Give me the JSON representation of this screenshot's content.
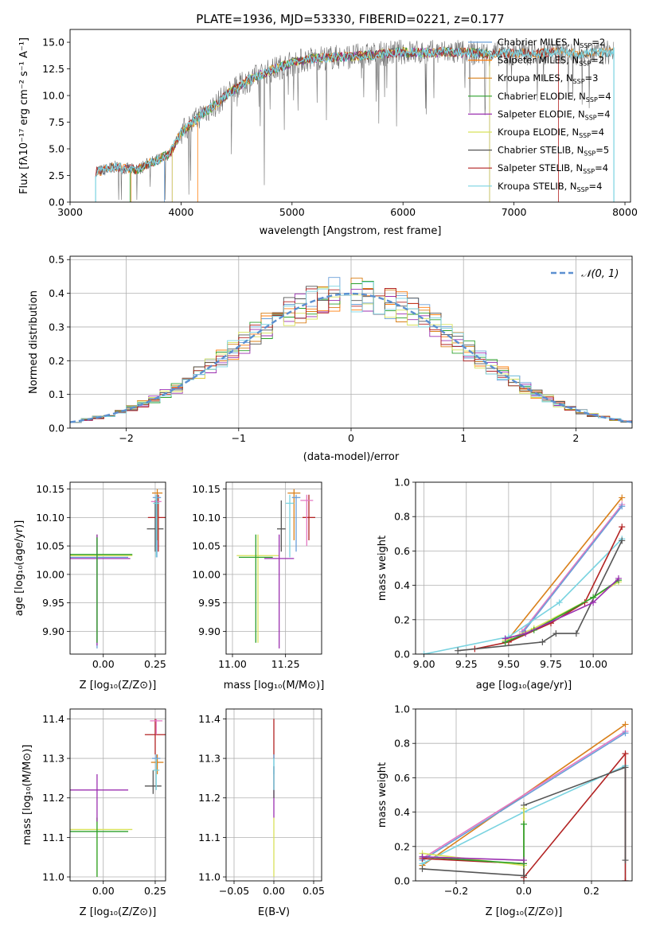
{
  "figure_title": "PLATE=1936, MJD=53330, FIBERID=0221, z=0.177",
  "colors": {
    "chabrier_miles": "#6a9fd8",
    "salpeter_miles": "#ff7f0e",
    "kroupa_miles": "#d9801a",
    "chabrier_elodie": "#2ca02c",
    "salpeter_elodie": "#9b30b0",
    "kroupa_elodie": "#d8e25a",
    "chabrier_stelib": "#555555",
    "salpeter_stelib": "#b22222",
    "kroupa_stelib": "#7ad3e0",
    "pink": "#e377c2",
    "gaussian": "#5b8fd0",
    "grid": "#b0b0b0"
  },
  "chart_data": [
    {
      "id": "spectrum",
      "type": "line",
      "title": "PLATE=1936, MJD=53330, FIBERID=0221, z=0.177",
      "xlabel": "wavelength [Angstrom, rest frame]",
      "ylabel": "Flux [fλ10⁻¹⁷ erg cm⁻² s⁻¹ A⁻¹]",
      "xlim": [
        3000,
        8050
      ],
      "ylim": [
        0,
        16.2
      ],
      "xticks": [
        3000,
        4000,
        5000,
        6000,
        7000,
        8000
      ],
      "yticks": [
        0.0,
        2.5,
        5.0,
        7.5,
        10.0,
        12.5,
        15.0
      ],
      "grid": false,
      "legend_position": "right",
      "legend": [
        {
          "label": "Chabrier MILES, N",
          "sub": "SSP",
          "tail": "=2",
          "color_key": "chabrier_miles"
        },
        {
          "label": "Salpeter MILES, N",
          "sub": "SSP",
          "tail": "=2",
          "color_key": "salpeter_miles"
        },
        {
          "label": "Kroupa MILES, N",
          "sub": "SSP",
          "tail": "=3",
          "color_key": "kroupa_miles"
        },
        {
          "label": "Chabrier ELODIE, N",
          "sub": "SSP",
          "tail": "=4",
          "color_key": "chabrier_elodie"
        },
        {
          "label": "Salpeter ELODIE, N",
          "sub": "SSP",
          "tail": "=4",
          "color_key": "salpeter_elodie"
        },
        {
          "label": "Kroupa ELODIE, N",
          "sub": "SSP",
          "tail": "=4",
          "color_key": "kroupa_elodie"
        },
        {
          "label": "Chabrier STELIB, N",
          "sub": "SSP",
          "tail": "=5",
          "color_key": "chabrier_stelib"
        },
        {
          "label": "Salpeter STELIB, N",
          "sub": "SSP",
          "tail": "=4",
          "color_key": "salpeter_stelib"
        },
        {
          "label": "Kroupa STELIB, N",
          "sub": "SSP",
          "tail": "=4",
          "color_key": "kroupa_stelib"
        }
      ],
      "continuum": [
        [
          3230,
          2.8
        ],
        [
          3400,
          3.3
        ],
        [
          3600,
          3.0
        ],
        [
          3700,
          3.6
        ],
        [
          3800,
          4.0
        ],
        [
          3900,
          4.6
        ],
        [
          4000,
          6.5
        ],
        [
          4100,
          7.4
        ],
        [
          4200,
          8.4
        ],
        [
          4300,
          9.0
        ],
        [
          4400,
          10.0
        ],
        [
          4600,
          11.4
        ],
        [
          4800,
          12.3
        ],
        [
          5000,
          13.1
        ],
        [
          5200,
          13.5
        ],
        [
          5400,
          13.6
        ],
        [
          5600,
          13.7
        ],
        [
          5800,
          13.9
        ],
        [
          6000,
          14.1
        ],
        [
          6200,
          14.0
        ],
        [
          6400,
          14.1
        ],
        [
          6600,
          14.0
        ],
        [
          6800,
          13.9
        ],
        [
          7000,
          14.0
        ],
        [
          7200,
          14.0
        ],
        [
          7400,
          14.1
        ],
        [
          7600,
          13.9
        ],
        [
          7800,
          14.0
        ],
        [
          7900,
          14.1
        ]
      ],
      "model_ranges": [
        [
          3230,
          3850
        ],
        [
          3230,
          4150
        ],
        [
          3550,
          7900
        ],
        [
          3540,
          6780
        ],
        [
          3920,
          6780
        ],
        [
          3920,
          6780
        ],
        [
          3230,
          7900
        ],
        [
          3230,
          7400
        ],
        [
          3230,
          7900
        ]
      ]
    },
    {
      "id": "residuals",
      "type": "histogram",
      "xlabel": "(data-model)/error",
      "ylabel": "Normed distribution",
      "xlim": [
        -2.5,
        2.5
      ],
      "ylim": [
        0,
        0.51
      ],
      "xticks": [
        -2,
        -1,
        0,
        1,
        2
      ],
      "xtick_labels": [
        "−2",
        "−1",
        "0",
        "1",
        "2"
      ],
      "yticks": [
        0.0,
        0.1,
        0.2,
        0.3,
        0.4,
        0.5
      ],
      "grid": true,
      "legend_label": "𝒩(0, 1)",
      "legend_position": "top-right",
      "bin_width": 0.1
    },
    {
      "id": "age_vs_Z",
      "type": "errorbar",
      "xlabel": "Z [log₁₀(Z/Z⊙)]",
      "ylabel": "age  [log₁₀(age/yr)]",
      "xlim": [
        -0.16,
        0.3
      ],
      "ylim": [
        9.86,
        10.162
      ],
      "xticks": [
        0.0,
        0.25
      ],
      "xtick_labels": [
        "0.00",
        "0.25"
      ],
      "yticks": [
        9.9,
        9.95,
        10.0,
        10.05,
        10.1,
        10.15
      ],
      "grid": true,
      "points": [
        {
          "x": -0.03,
          "y": 10.03,
          "xerr": 0.15,
          "ylo": 9.87,
          "yhi": 10.07,
          "color_key": "chabrier_miles"
        },
        {
          "x": -0.03,
          "y": 10.033,
          "xerr": 0.17,
          "ylo": 9.88,
          "yhi": 10.07,
          "color_key": "kroupa_elodie"
        },
        {
          "x": -0.03,
          "y": 10.028,
          "xerr": 0.16,
          "ylo": 9.875,
          "yhi": 10.07,
          "color_key": "salpeter_elodie"
        },
        {
          "x": -0.03,
          "y": 10.035,
          "xerr": 0.17,
          "ylo": 9.88,
          "yhi": 10.065,
          "color_key": "chabrier_elodie"
        },
        {
          "x": 0.25,
          "y": 10.08,
          "xerr": 0.04,
          "ylo": 10.04,
          "yhi": 10.13,
          "color_key": "chabrier_stelib"
        },
        {
          "x": 0.265,
          "y": 10.1,
          "xerr": 0.05,
          "ylo": 10.04,
          "yhi": 10.14,
          "color_key": "salpeter_stelib"
        },
        {
          "x": 0.26,
          "y": 10.143,
          "xerr": 0.025,
          "ylo": 10.06,
          "yhi": 10.15,
          "color_key": "kroupa_miles"
        },
        {
          "x": 0.255,
          "y": 10.128,
          "xerr": 0.025,
          "ylo": 10.05,
          "yhi": 10.14,
          "color_key": "pink"
        },
        {
          "x": 0.258,
          "y": 10.135,
          "xerr": 0.02,
          "ylo": 10.03,
          "yhi": 10.14,
          "color_key": "chabrier_miles"
        },
        {
          "x": 0.255,
          "y": 10.125,
          "xerr": 0.015,
          "ylo": 10.03,
          "yhi": 10.14,
          "color_key": "kroupa_stelib"
        }
      ]
    },
    {
      "id": "age_vs_mass",
      "type": "errorbar",
      "xlabel": "mass [log₁₀(M/M⊙)]",
      "ylabel": "",
      "xlim": [
        10.97,
        11.42
      ],
      "ylim": [
        9.86,
        10.162
      ],
      "xticks": [
        11.0,
        11.25
      ],
      "xtick_labels": [
        "11.00",
        "11.25"
      ],
      "yticks": [
        9.9,
        9.95,
        10.0,
        10.05,
        10.1,
        10.15
      ],
      "grid": true,
      "points": [
        {
          "x": 11.12,
          "y": 10.033,
          "xerr": 0.1,
          "ylo": 9.88,
          "yhi": 10.07,
          "color_key": "kroupa_elodie"
        },
        {
          "x": 11.11,
          "y": 10.03,
          "xerr": 0.08,
          "ylo": 9.88,
          "yhi": 10.07,
          "color_key": "chabrier_elodie"
        },
        {
          "x": 11.22,
          "y": 10.028,
          "xerr": 0.07,
          "ylo": 9.87,
          "yhi": 10.07,
          "color_key": "salpeter_elodie"
        },
        {
          "x": 11.23,
          "y": 10.08,
          "xerr": 0.02,
          "ylo": 10.04,
          "yhi": 10.13,
          "color_key": "chabrier_stelib"
        },
        {
          "x": 11.36,
          "y": 10.1,
          "xerr": 0.03,
          "ylo": 10.06,
          "yhi": 10.14,
          "color_key": "salpeter_stelib"
        },
        {
          "x": 11.29,
          "y": 10.143,
          "xerr": 0.03,
          "ylo": 10.06,
          "yhi": 10.15,
          "color_key": "kroupa_miles"
        },
        {
          "x": 11.35,
          "y": 10.13,
          "xerr": 0.03,
          "ylo": 10.05,
          "yhi": 10.14,
          "color_key": "pink"
        },
        {
          "x": 11.3,
          "y": 10.135,
          "xerr": 0.02,
          "ylo": 10.04,
          "yhi": 10.14,
          "color_key": "chabrier_miles"
        },
        {
          "x": 11.27,
          "y": 10.125,
          "xerr": 0.02,
          "ylo": 10.03,
          "yhi": 10.14,
          "color_key": "kroupa_stelib"
        }
      ]
    },
    {
      "id": "weight_vs_age",
      "type": "line",
      "xlabel": "age  [log₁₀(age/yr)]",
      "ylabel": "mass weight",
      "xlim": [
        8.95,
        10.23
      ],
      "ylim": [
        0,
        1.0
      ],
      "xticks": [
        9.0,
        9.25,
        9.5,
        9.75,
        10.0
      ],
      "xtick_labels": [
        "9.00",
        "9.25",
        "9.50",
        "9.75",
        "10.00"
      ],
      "yticks": [
        0.0,
        0.2,
        0.4,
        0.6,
        0.8,
        1.0
      ],
      "grid": true,
      "series": [
        {
          "color_key": "kroupa_miles",
          "x": [
            9.5,
            10.17
          ],
          "y": [
            0.09,
            0.91
          ]
        },
        {
          "color_key": "pink",
          "x": [
            9.58,
            10.17
          ],
          "y": [
            0.13,
            0.87
          ]
        },
        {
          "color_key": "chabrier_miles",
          "x": [
            9.58,
            10.17
          ],
          "y": [
            0.12,
            0.86
          ]
        },
        {
          "color_key": "kroupa_stelib",
          "x": [
            9.0,
            9.5,
            9.8,
            10.17
          ],
          "y": [
            0.0,
            0.1,
            0.3,
            0.67
          ]
        },
        {
          "color_key": "salpeter_stelib",
          "x": [
            9.3,
            9.5,
            9.75,
            9.95,
            10.17
          ],
          "y": [
            0.03,
            0.07,
            0.18,
            0.3,
            0.74
          ]
        },
        {
          "color_key": "chabrier_stelib",
          "x": [
            9.2,
            9.7,
            9.78,
            9.9,
            10.17
          ],
          "y": [
            0.02,
            0.07,
            0.12,
            0.12,
            0.66
          ]
        },
        {
          "color_key": "kroupa_elodie",
          "x": [
            9.48,
            9.65,
            10.0,
            10.15
          ],
          "y": [
            0.08,
            0.15,
            0.33,
            0.42
          ]
        },
        {
          "color_key": "chabrier_elodie",
          "x": [
            9.48,
            9.65,
            10.0,
            10.15
          ],
          "y": [
            0.07,
            0.14,
            0.33,
            0.43
          ]
        },
        {
          "color_key": "salpeter_elodie",
          "x": [
            9.48,
            9.6,
            10.0,
            10.15
          ],
          "y": [
            0.09,
            0.12,
            0.3,
            0.44
          ]
        }
      ]
    },
    {
      "id": "mass_vs_Z",
      "type": "errorbar",
      "xlabel": "Z [log₁₀(Z/Z⊙)]",
      "ylabel": "mass [log₁₀(M/M⊙)]",
      "xlim": [
        -0.16,
        0.3
      ],
      "ylim": [
        10.99,
        11.425
      ],
      "xticks": [
        0.0,
        0.25
      ],
      "xtick_labels": [
        "0.00",
        "0.25"
      ],
      "yticks": [
        11.0,
        11.1,
        11.2,
        11.3,
        11.4
      ],
      "grid": true,
      "points": [
        {
          "x": -0.03,
          "y": 11.12,
          "xerr": 0.17,
          "ylo": 11.0,
          "yhi": 11.15,
          "color_key": "kroupa_elodie"
        },
        {
          "x": -0.03,
          "y": 11.115,
          "xerr": 0.15,
          "ylo": 11.0,
          "yhi": 11.15,
          "color_key": "chabrier_elodie"
        },
        {
          "x": -0.03,
          "y": 11.22,
          "xerr": 0.15,
          "ylo": 11.14,
          "yhi": 11.26,
          "color_key": "salpeter_elodie"
        },
        {
          "x": 0.24,
          "y": 11.23,
          "xerr": 0.04,
          "ylo": 11.21,
          "yhi": 11.27,
          "color_key": "chabrier_stelib"
        },
        {
          "x": 0.25,
          "y": 11.36,
          "xerr": 0.05,
          "ylo": 11.31,
          "yhi": 11.4,
          "color_key": "salpeter_stelib"
        },
        {
          "x": 0.255,
          "y": 11.395,
          "xerr": 0.03,
          "ylo": 11.36,
          "yhi": 11.4,
          "color_key": "pink"
        },
        {
          "x": 0.26,
          "y": 11.29,
          "xerr": 0.03,
          "ylo": 11.26,
          "yhi": 11.31,
          "color_key": "kroupa_miles"
        },
        {
          "x": 0.255,
          "y": 11.3,
          "xerr": 0.02,
          "ylo": 11.27,
          "yhi": 11.31,
          "color_key": "chabrier_miles"
        },
        {
          "x": 0.255,
          "y": 11.27,
          "xerr": 0.015,
          "ylo": 11.22,
          "yhi": 11.3,
          "color_key": "kroupa_stelib"
        }
      ]
    },
    {
      "id": "mass_vs_ebv",
      "type": "errorbar",
      "xlabel": "E(B-V)",
      "ylabel": "",
      "xlim": [
        -0.06,
        0.06
      ],
      "ylim": [
        10.99,
        11.425
      ],
      "xticks": [
        -0.05,
        0.0,
        0.05
      ],
      "xtick_labels": [
        "−0.05",
        "0.00",
        "0.05"
      ],
      "yticks": [
        11.0,
        11.1,
        11.2,
        11.3,
        11.4
      ],
      "grid": true,
      "points": [
        {
          "x": 0.0,
          "y": 11.12,
          "xerr": 0.0,
          "ylo": 11.0,
          "yhi": 11.15,
          "color_key": "kroupa_elodie"
        },
        {
          "x": 0.0,
          "y": 11.22,
          "xerr": 0.0,
          "ylo": 11.15,
          "yhi": 11.28,
          "color_key": "salpeter_elodie"
        },
        {
          "x": 0.0,
          "y": 11.36,
          "xerr": 0.0,
          "ylo": 11.3,
          "yhi": 11.4,
          "color_key": "salpeter_stelib"
        },
        {
          "x": 0.0,
          "y": 11.29,
          "xerr": 0.0,
          "ylo": 11.26,
          "yhi": 11.31,
          "color_key": "chabrier_miles"
        },
        {
          "x": 0.0,
          "y": 11.23,
          "xerr": 0.0,
          "ylo": 11.2,
          "yhi": 11.28,
          "color_key": "chabrier_stelib"
        },
        {
          "x": 0.0,
          "y": 11.27,
          "xerr": 0.0,
          "ylo": 11.22,
          "yhi": 11.3,
          "color_key": "kroupa_stelib"
        }
      ]
    },
    {
      "id": "weight_vs_Z",
      "type": "line",
      "xlabel": "Z [log₁₀(Z/Z⊙)]",
      "ylabel": "mass weight",
      "xlim": [
        -0.32,
        0.32
      ],
      "ylim": [
        0,
        1.0
      ],
      "xticks": [
        -0.2,
        0.0,
        0.2
      ],
      "xtick_labels": [
        "−0.2",
        "0.0",
        "0.2"
      ],
      "yticks": [
        0.0,
        0.2,
        0.4,
        0.6,
        0.8,
        1.0
      ],
      "grid": true,
      "series": [
        {
          "color_key": "kroupa_miles",
          "x": [
            -0.3,
            0.3
          ],
          "y": [
            0.09,
            0.91
          ]
        },
        {
          "color_key": "pink",
          "x": [
            -0.3,
            0.3
          ],
          "y": [
            0.13,
            0.87
          ]
        },
        {
          "color_key": "chabrier_miles",
          "x": [
            -0.3,
            0.3
          ],
          "y": [
            0.12,
            0.86
          ]
        },
        {
          "color_key": "kroupa_stelib",
          "x": [
            -0.3,
            0.0,
            0.3,
            0.3
          ],
          "y": [
            0.1,
            0.4,
            0.67,
            0.0
          ]
        },
        {
          "color_key": "salpeter_stelib",
          "x": [
            -0.3,
            0.0,
            0.0,
            0.3,
            0.3
          ],
          "y": [
            0.13,
            0.1,
            0.02,
            0.74,
            0.0
          ]
        },
        {
          "color_key": "chabrier_stelib",
          "x": [
            -0.3,
            0.0,
            0.0,
            0.3,
            0.3
          ],
          "y": [
            0.07,
            0.03,
            0.44,
            0.66,
            0.12
          ]
        },
        {
          "color_key": "kroupa_elodie",
          "x": [
            -0.3,
            0.0,
            0.0
          ],
          "y": [
            0.16,
            0.09,
            0.42
          ]
        },
        {
          "color_key": "chabrier_elodie",
          "x": [
            -0.3,
            0.0,
            0.0
          ],
          "y": [
            0.14,
            0.1,
            0.33
          ]
        },
        {
          "color_key": "salpeter_elodie",
          "x": [
            -0.3,
            0.0
          ],
          "y": [
            0.14,
            0.12
          ]
        }
      ]
    }
  ]
}
